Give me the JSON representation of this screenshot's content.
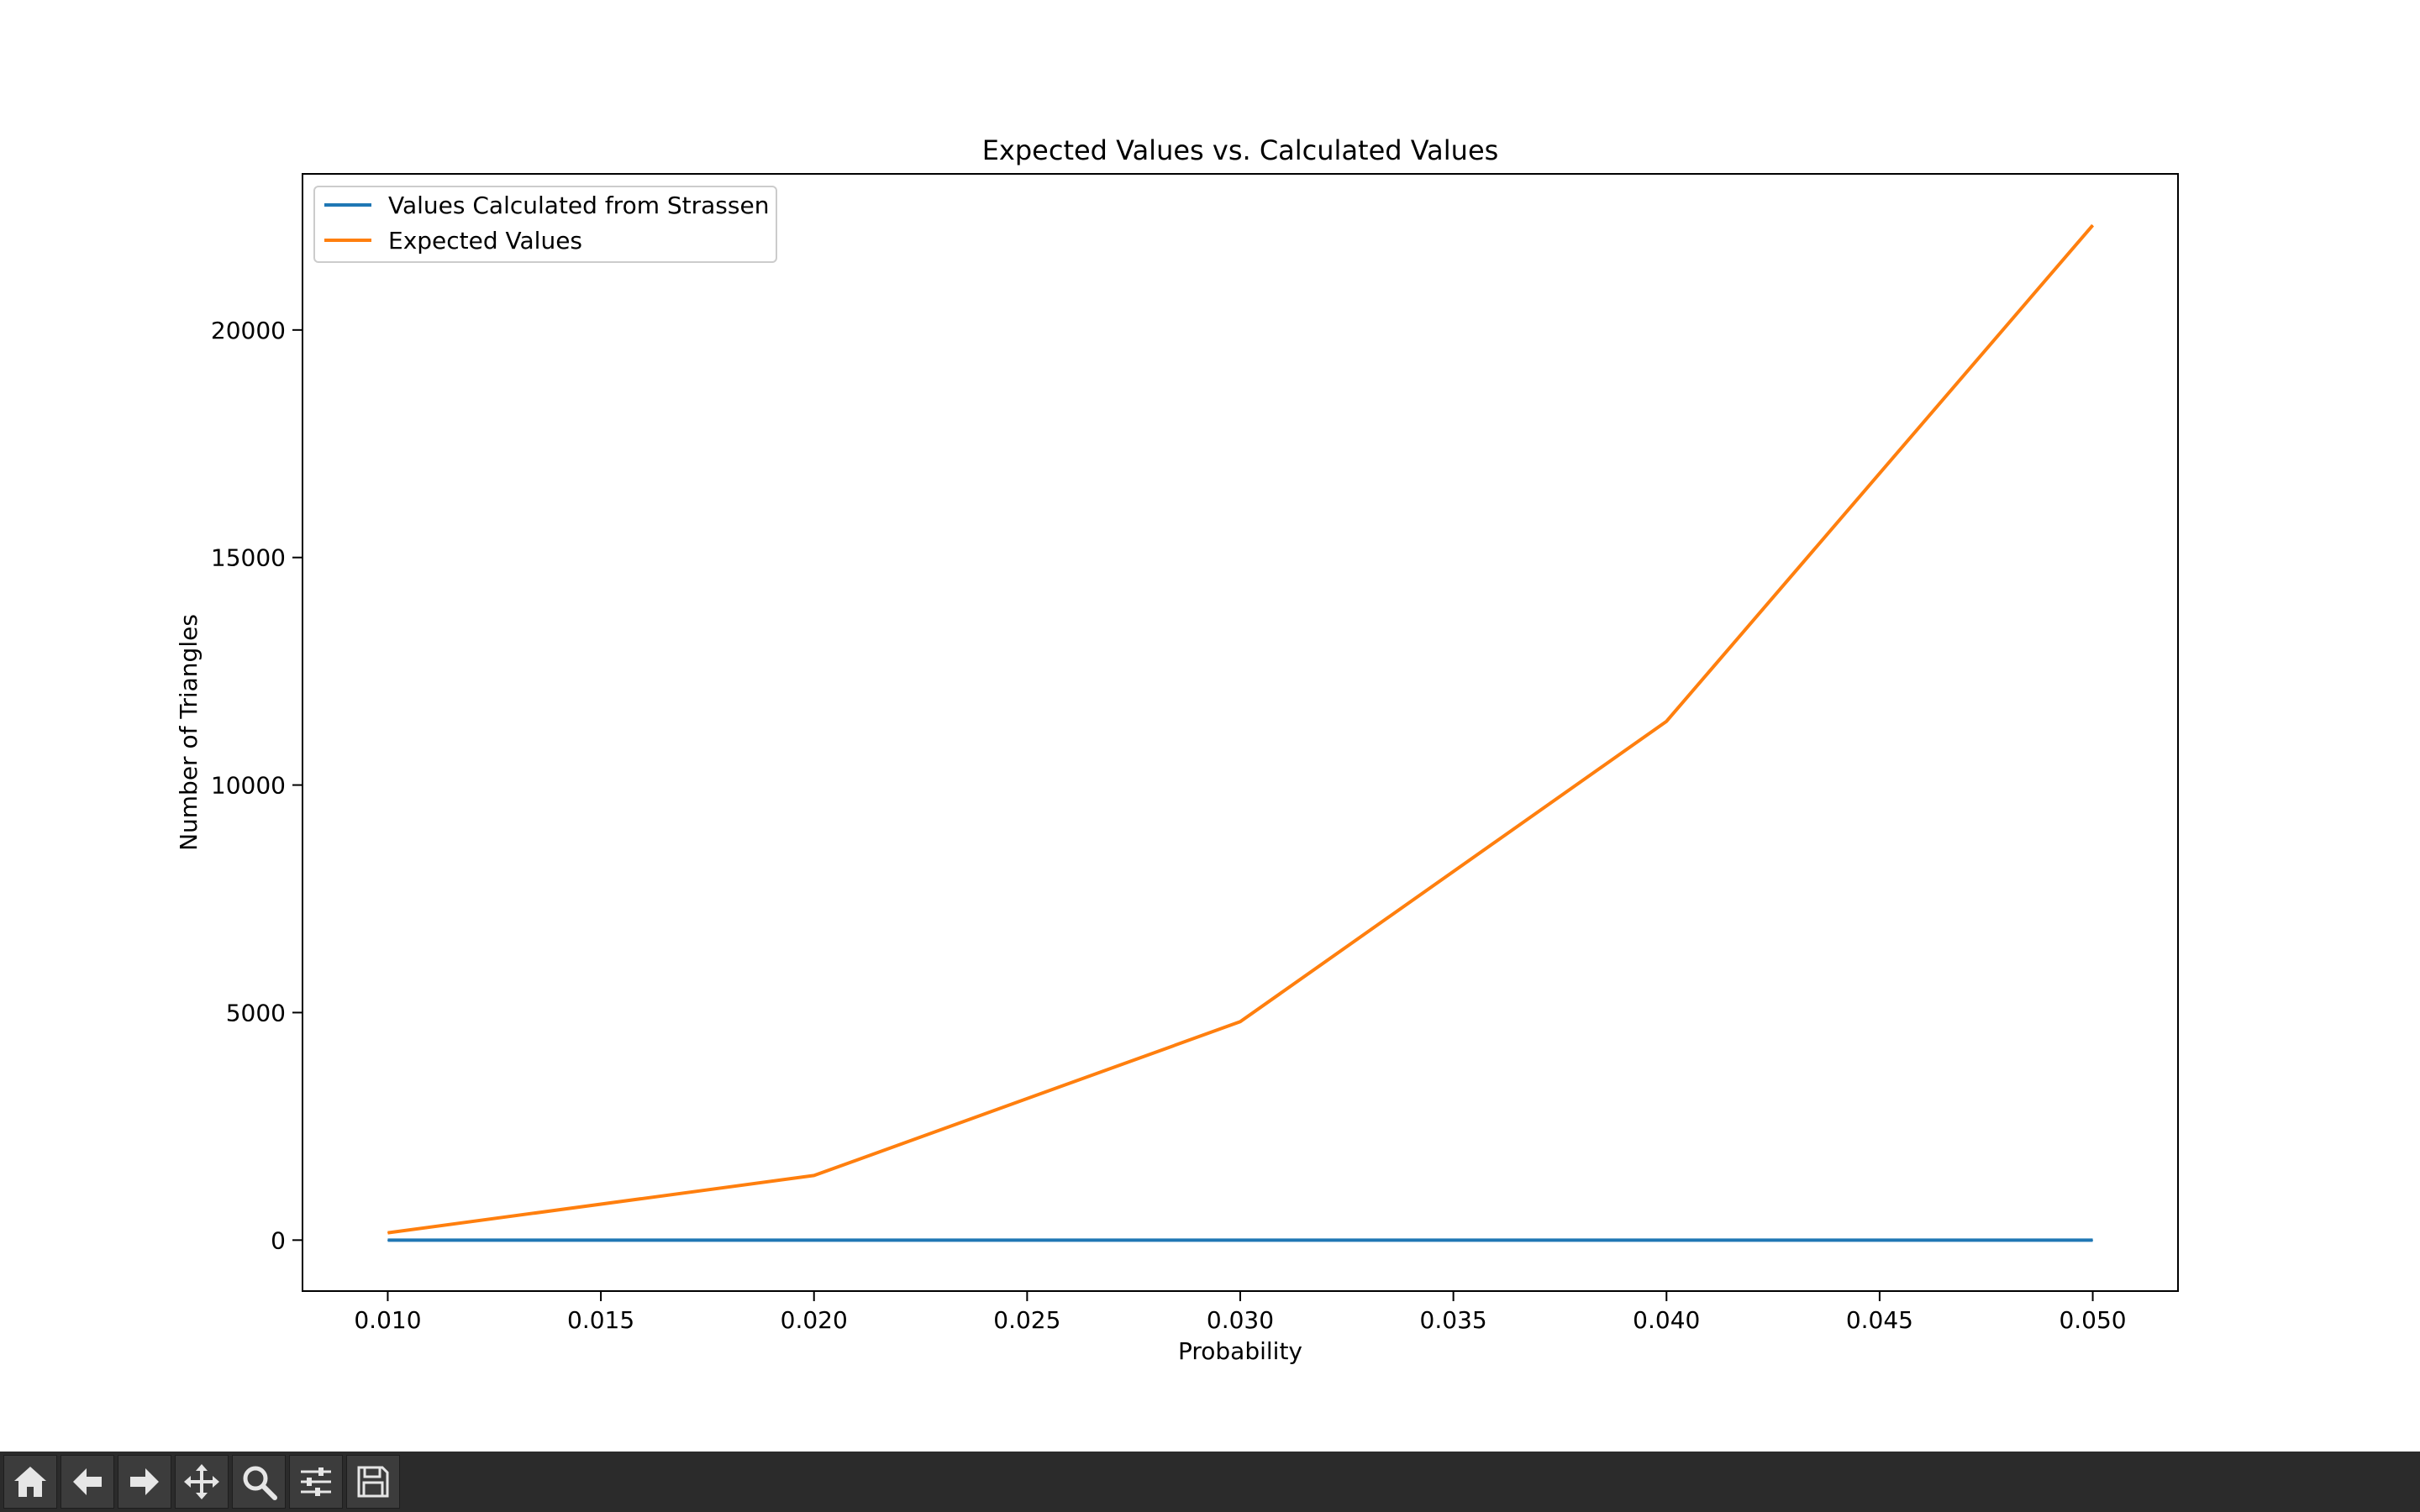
{
  "chart_data": {
    "type": "line",
    "title": "Expected Values vs. Calculated Values",
    "xlabel": "Probability",
    "ylabel": "Number of Triangles",
    "x": [
      0.01,
      0.02,
      0.03,
      0.04,
      0.05
    ],
    "series": [
      {
        "name": "Values Calculated from Strassen",
        "color": "#1f77b4",
        "values": [
          0,
          0,
          0,
          0,
          0
        ]
      },
      {
        "name": "Expected Values",
        "color": "#ff7f0e",
        "values": [
          160,
          1420,
          4800,
          11400,
          22300
        ]
      }
    ],
    "xlim": [
      0.008,
      0.052
    ],
    "ylim": [
      -1120,
      23430
    ],
    "xticks": [
      0.01,
      0.015,
      0.02,
      0.025,
      0.03,
      0.035,
      0.04,
      0.045,
      0.05
    ],
    "xtick_labels": [
      "0.010",
      "0.015",
      "0.020",
      "0.025",
      "0.030",
      "0.035",
      "0.040",
      "0.045",
      "0.050"
    ],
    "yticks": [
      0,
      5000,
      10000,
      15000,
      20000
    ],
    "ytick_labels": [
      "0",
      "5000",
      "10000",
      "15000",
      "20000"
    ],
    "grid": false,
    "legend": "upper-left"
  },
  "toolbar": {
    "buttons": [
      {
        "icon": "home-icon"
      },
      {
        "icon": "back-arrow-icon"
      },
      {
        "icon": "forward-arrow-icon"
      },
      {
        "icon": "pan-icon"
      },
      {
        "icon": "zoom-icon"
      },
      {
        "icon": "configure-subplots-icon"
      },
      {
        "icon": "save-icon"
      }
    ]
  }
}
